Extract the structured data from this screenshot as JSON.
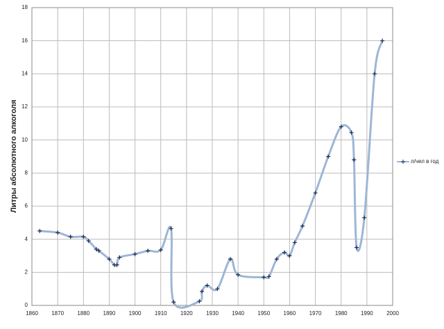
{
  "chart_data": {
    "type": "line",
    "y_label": "Литры абсолютного алкоголя",
    "x": [
      1863,
      1870,
      1875,
      1880,
      1882,
      1885,
      1886,
      1890,
      1892,
      1893,
      1894,
      1900,
      1905,
      1910,
      1914,
      1915,
      1925,
      1926,
      1928,
      1932,
      1937,
      1940,
      1950,
      1952,
      1955,
      1958,
      1960,
      1962,
      1965,
      1970,
      1975,
      1980,
      1984,
      1985,
      1986,
      1989,
      1993,
      1996
    ],
    "series": [
      {
        "name": "л/чел в год",
        "color": "#9db6d6",
        "marker_color": "#1f2a4f",
        "values": [
          4.5,
          4.4,
          4.15,
          4.15,
          3.9,
          3.4,
          3.3,
          2.8,
          2.45,
          2.45,
          2.9,
          3.1,
          3.3,
          3.35,
          4.65,
          0.2,
          0.25,
          0.85,
          1.2,
          1.0,
          2.8,
          1.85,
          1.7,
          1.75,
          2.8,
          3.2,
          3.0,
          3.8,
          4.8,
          6.8,
          9.0,
          10.8,
          10.45,
          8.8,
          3.5,
          5.3,
          14.0,
          16.0
        ]
      }
    ],
    "xlim": [
      1860,
      2000
    ],
    "xticks": [
      1860,
      1870,
      1880,
      1890,
      1900,
      1910,
      1920,
      1930,
      1940,
      1950,
      1960,
      1970,
      1980,
      1990,
      2000
    ],
    "ylim": [
      0,
      18
    ],
    "yticks": [
      0,
      2,
      4,
      6,
      8,
      10,
      12,
      14,
      16,
      18
    ],
    "grid": true,
    "legend": "right"
  }
}
